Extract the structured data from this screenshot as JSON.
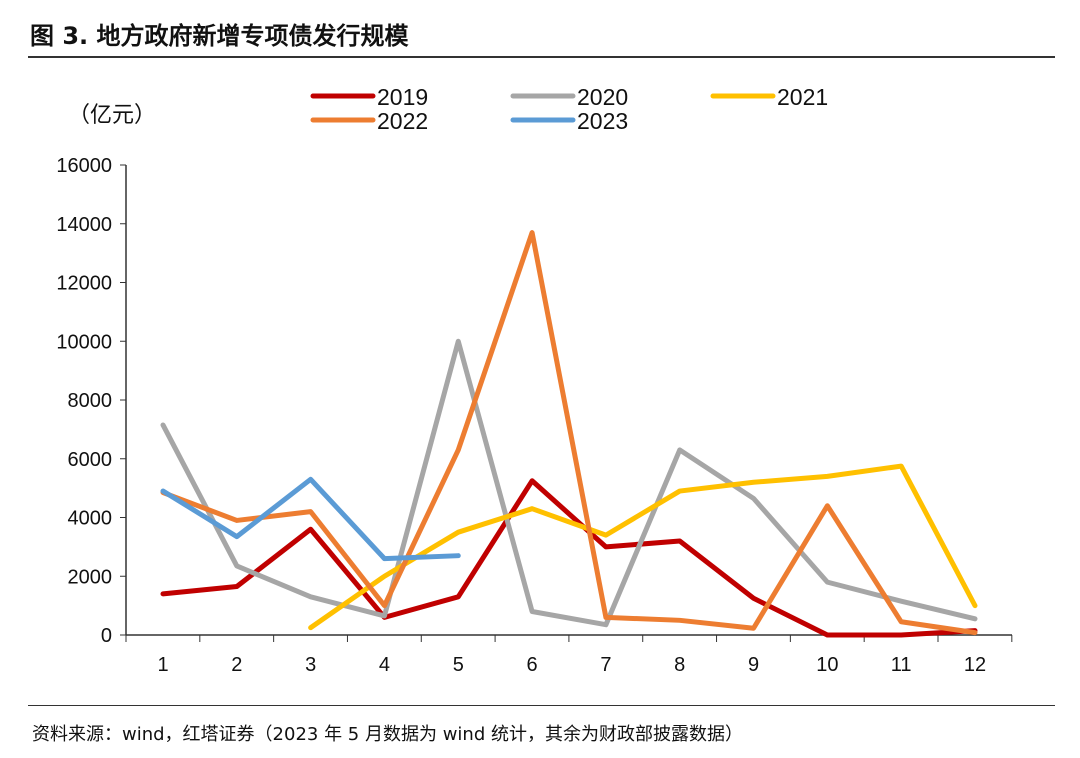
{
  "title": "图 3. 地方政府新增专项债发行规模",
  "source": "资料来源：wind，红塔证券（2023 年 5 月数据为 wind 统计，其余为财政部披露数据）",
  "chart_data": {
    "type": "line",
    "title": "图 3. 地方政府新增专项债发行规模",
    "ylabel": "（亿元）",
    "xlabel": "",
    "x": [
      1,
      2,
      3,
      4,
      5,
      6,
      7,
      8,
      9,
      10,
      11,
      12
    ],
    "ylim": [
      0,
      16000
    ],
    "yticks": [
      0,
      2000,
      4000,
      6000,
      8000,
      10000,
      12000,
      14000,
      16000
    ],
    "grid": false,
    "legend": "top",
    "series": [
      {
        "name": "2019",
        "color": "#C00000",
        "values": [
          1400,
          1650,
          3600,
          600,
          1300,
          5250,
          3000,
          3200,
          1250,
          0,
          0,
          150
        ]
      },
      {
        "name": "2020",
        "color": "#A6A6A6",
        "values": [
          7150,
          2350,
          1300,
          650,
          10000,
          800,
          350,
          6300,
          4650,
          1800,
          1150,
          550
        ]
      },
      {
        "name": "2021",
        "color": "#FFC000",
        "values": [
          null,
          null,
          250,
          2000,
          3500,
          4300,
          3400,
          4900,
          5200,
          5400,
          5750,
          1000
        ]
      },
      {
        "name": "2022",
        "color": "#ED7D31",
        "values": [
          4850,
          3900,
          4200,
          1000,
          6300,
          13700,
          600,
          500,
          230,
          4400,
          450,
          80
        ]
      },
      {
        "name": "2023",
        "color": "#5B9BD5",
        "values": [
          4900,
          3350,
          5300,
          2600,
          2700,
          null,
          null,
          null,
          null,
          null,
          null,
          null
        ]
      }
    ]
  }
}
